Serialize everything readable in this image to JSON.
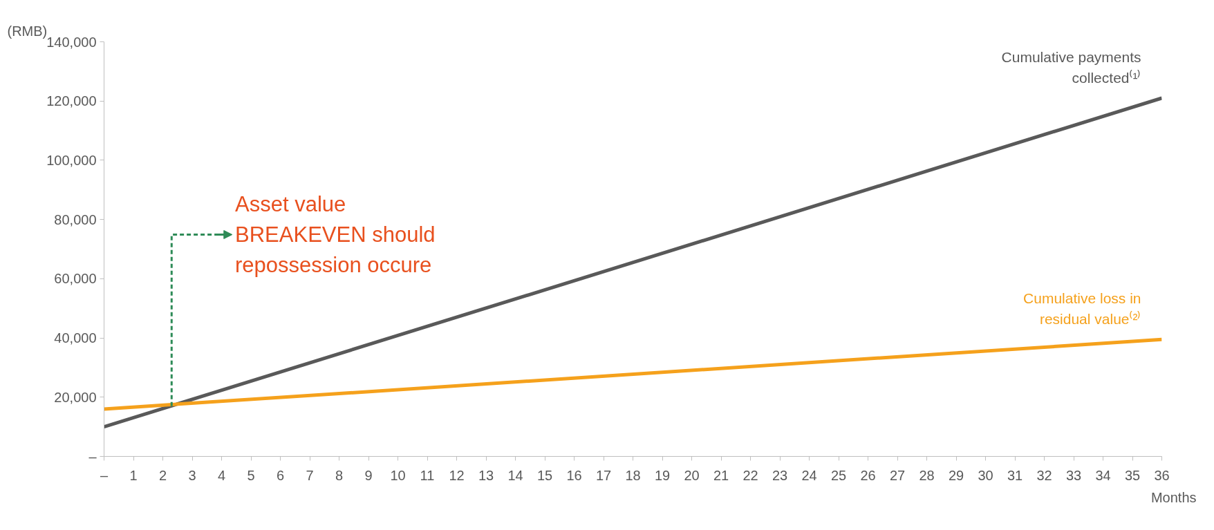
{
  "chart_data": {
    "type": "line",
    "ylabel": "(RMB)",
    "xlabel": "Months",
    "x": [
      0,
      36
    ],
    "series": [
      {
        "name": "Cumulative payments\ncollected⁽¹⁾",
        "color": "#595959",
        "values": [
          10000,
          121000
        ]
      },
      {
        "name": "Cumulative loss in\nresidual value⁽²⁾",
        "color": "#f5a11c",
        "values": [
          16000,
          39500
        ]
      }
    ],
    "annotations": [
      {
        "text": "Asset value\nBREAKEVEN should\nrepossession occure",
        "x": 2.3,
        "y": 17000
      }
    ],
    "xlim": [
      0,
      36
    ],
    "ylim": [
      0,
      140000
    ],
    "xticks": [
      {
        "value": 0,
        "label": "–"
      },
      1,
      2,
      3,
      4,
      5,
      6,
      7,
      8,
      9,
      10,
      11,
      12,
      13,
      14,
      15,
      16,
      17,
      18,
      19,
      20,
      21,
      22,
      23,
      24,
      25,
      26,
      27,
      28,
      29,
      30,
      31,
      32,
      33,
      34,
      35,
      36
    ],
    "yticks": [
      {
        "value": 0,
        "label": "–"
      },
      {
        "value": 20000,
        "label": "20,000"
      },
      {
        "value": 40000,
        "label": "40,000"
      },
      {
        "value": 60000,
        "label": "60,000"
      },
      {
        "value": 80000,
        "label": "80,000"
      },
      {
        "value": 100000,
        "label": "100,000"
      },
      {
        "value": 120000,
        "label": "120,000"
      },
      {
        "value": 140000,
        "label": "140,000"
      }
    ],
    "grid": false,
    "marker": "none",
    "line_style": "solid"
  }
}
